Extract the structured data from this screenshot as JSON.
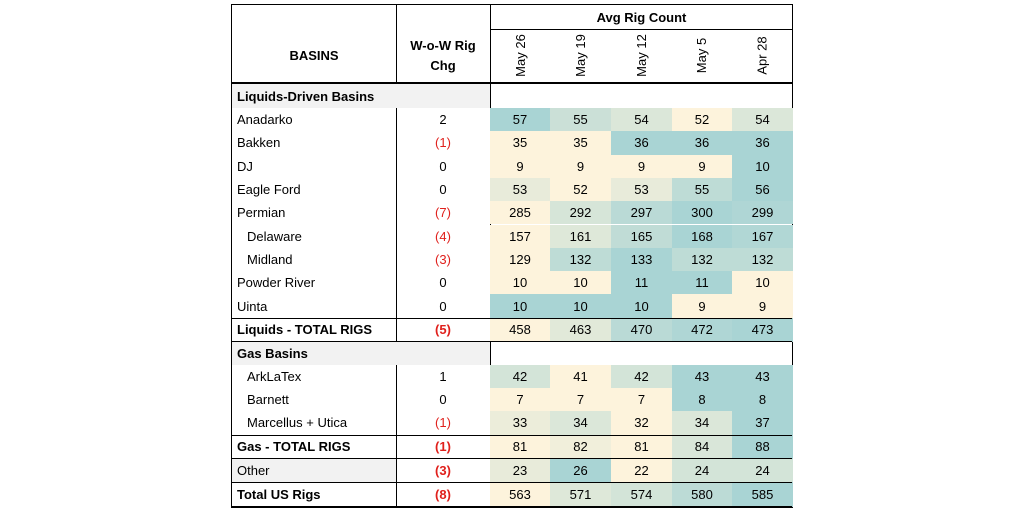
{
  "header": {
    "group_label": "Avg Rig Count",
    "basins_label": "BASINS",
    "wow_label_line1": "W-o-W Rig",
    "wow_label_line2": "Chg",
    "weeks": [
      "May 26",
      "May 19",
      "May 12",
      "May 5",
      "Apr 28"
    ]
  },
  "sections": {
    "liquids": "Liquids-Driven Basins",
    "gas": "Gas Basins"
  },
  "rows": [
    {
      "name": "Anadarko",
      "wow": "2",
      "neg": false,
      "indent": false,
      "vals": [
        "57",
        "55",
        "54",
        "52",
        "54"
      ]
    },
    {
      "name": "Bakken",
      "wow": "(1)",
      "neg": true,
      "indent": false,
      "vals": [
        "35",
        "35",
        "36",
        "36",
        "36"
      ]
    },
    {
      "name": "DJ",
      "wow": "0",
      "neg": false,
      "indent": false,
      "vals": [
        "9",
        "9",
        "9",
        "9",
        "10"
      ]
    },
    {
      "name": "Eagle Ford",
      "wow": "0",
      "neg": false,
      "indent": false,
      "vals": [
        "53",
        "52",
        "53",
        "55",
        "56"
      ]
    },
    {
      "name": "Permian",
      "wow": "(7)",
      "neg": true,
      "indent": false,
      "vals": [
        "285",
        "292",
        "297",
        "300",
        "299"
      ]
    },
    {
      "name": "Delaware",
      "wow": "(4)",
      "neg": true,
      "indent": true,
      "vals": [
        "157",
        "161",
        "165",
        "168",
        "167"
      ]
    },
    {
      "name": "Midland",
      "wow": "(3)",
      "neg": true,
      "indent": true,
      "vals": [
        "129",
        "132",
        "133",
        "132",
        "132"
      ]
    },
    {
      "name": "Powder River",
      "wow": "0",
      "neg": false,
      "indent": false,
      "vals": [
        "10",
        "10",
        "11",
        "11",
        "10"
      ]
    },
    {
      "name": "Uinta",
      "wow": "0",
      "neg": false,
      "indent": false,
      "vals": [
        "10",
        "10",
        "10",
        "9",
        "9"
      ]
    },
    {
      "name": "Liquids - TOTAL RIGS",
      "wow": "(5)",
      "neg": true,
      "indent": false,
      "vals": [
        "458",
        "463",
        "470",
        "472",
        "473"
      ]
    },
    {
      "name": "ArkLaTex",
      "wow": "1",
      "neg": false,
      "indent": true,
      "vals": [
        "42",
        "41",
        "42",
        "43",
        "43"
      ]
    },
    {
      "name": "Barnett",
      "wow": "0",
      "neg": false,
      "indent": true,
      "vals": [
        "7",
        "7",
        "7",
        "8",
        "8"
      ]
    },
    {
      "name": "Marcellus + Utica",
      "wow": "(1)",
      "neg": true,
      "indent": true,
      "vals": [
        "33",
        "34",
        "32",
        "34",
        "37"
      ]
    },
    {
      "name": "Gas - TOTAL RIGS",
      "wow": "(1)",
      "neg": true,
      "indent": false,
      "vals": [
        "81",
        "82",
        "81",
        "84",
        "88"
      ]
    },
    {
      "name": "Other",
      "wow": "(3)",
      "neg": true,
      "indent": false,
      "vals": [
        "23",
        "26",
        "22",
        "24",
        "24"
      ]
    },
    {
      "name": "Total US Rigs",
      "wow": "(8)",
      "neg": true,
      "indent": false,
      "vals": [
        "563",
        "571",
        "574",
        "580",
        "585"
      ]
    }
  ],
  "colors": {
    "heat_high": "#a9d4d4",
    "heat_low": "#fdf3dc",
    "negative": "#e0201c",
    "section_bg": "#f2f2f2"
  }
}
